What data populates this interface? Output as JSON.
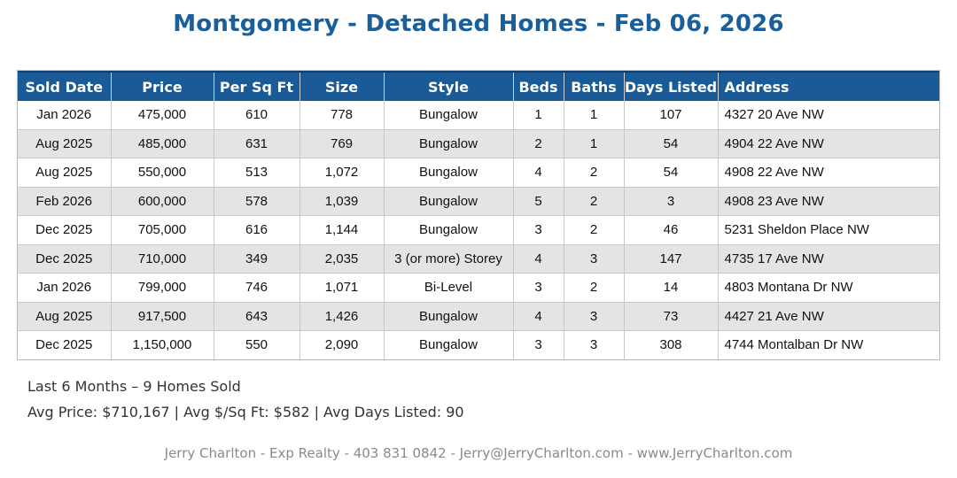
{
  "title": "Montgomery - Detached Homes - Feb 06, 2026",
  "table": {
    "headers": [
      "Sold Date",
      "Price",
      "Per Sq Ft",
      "Size",
      "Style",
      "Beds",
      "Baths",
      "Days Listed",
      "Address"
    ],
    "rows": [
      [
        "Jan 2026",
        "475,000",
        "610",
        "778",
        "Bungalow",
        "1",
        "1",
        "107",
        "4327 20 Ave NW"
      ],
      [
        "Aug 2025",
        "485,000",
        "631",
        "769",
        "Bungalow",
        "2",
        "1",
        "54",
        "4904 22 Ave NW"
      ],
      [
        "Aug 2025",
        "550,000",
        "513",
        "1,072",
        "Bungalow",
        "4",
        "2",
        "54",
        "4908 22 Ave NW"
      ],
      [
        "Feb 2026",
        "600,000",
        "578",
        "1,039",
        "Bungalow",
        "5",
        "2",
        "3",
        "4908 23 Ave NW"
      ],
      [
        "Dec 2025",
        "705,000",
        "616",
        "1,144",
        "Bungalow",
        "3",
        "2",
        "46",
        "5231 Sheldon Place NW"
      ],
      [
        "Dec 2025",
        "710,000",
        "349",
        "2,035",
        "3 (or more) Storey",
        "4",
        "3",
        "147",
        "4735 17 Ave NW"
      ],
      [
        "Jan 2026",
        "799,000",
        "746",
        "1,071",
        "Bi-Level",
        "3",
        "2",
        "14",
        "4803 Montana Dr NW"
      ],
      [
        "Aug 2025",
        "917,500",
        "643",
        "1,426",
        "Bungalow",
        "4",
        "3",
        "73",
        "4427 21 Ave NW"
      ],
      [
        "Dec 2025",
        "1,150,000",
        "550",
        "2,090",
        "Bungalow",
        "3",
        "3",
        "308",
        "4744 Montalban Dr NW"
      ]
    ]
  },
  "summary": {
    "line1": "Last 6 Months – 9 Homes Sold",
    "line2": "Avg Price: $710,167 | Avg $/Sq Ft: $582 | Avg Days Listed: 90"
  },
  "footer": "Jerry Charlton - Exp Realty - 403 831 0842 - Jerry@JerryCharlton.com - www.JerryCharlton.com",
  "colors": {
    "title": "#1a5e9a",
    "header_bg": "#1a5a96",
    "row_alt_bg": "#e4e4e4"
  }
}
